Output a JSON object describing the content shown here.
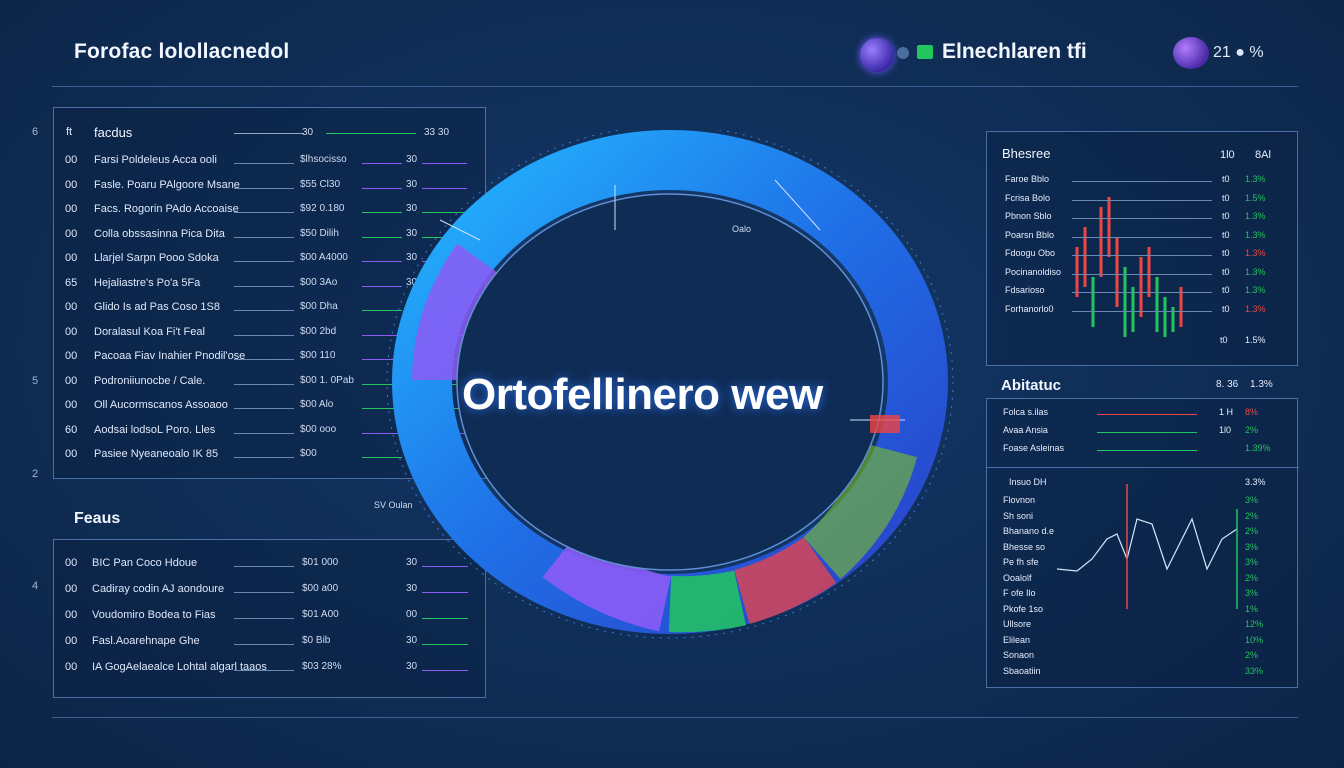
{
  "header": {
    "title": "Forofac lolollacnedol",
    "brand": "Elnechlaren tfi",
    "right_value": "21 ● %",
    "colors": {
      "accent": "#2f8cff",
      "green": "#22c55e",
      "purple": "#8b5cf6",
      "red": "#ef4444"
    }
  },
  "left_axis": [
    "6",
    "5",
    "2",
    "4"
  ],
  "holdings": {
    "header_idx": "ft",
    "header_label": "facdus",
    "header_val": "30",
    "header_extra": "33 30",
    "rows": [
      {
        "idx": "00",
        "label": "Farsi Poldeleus Acca ooli",
        "val": "$lhsocisso",
        "amt": "30",
        "color": "#8b5cf6"
      },
      {
        "idx": "00",
        "label": "Fasle. Poaru PAlgoore Msane",
        "val": "$55 Cl30",
        "amt": "30",
        "color": "#8b5cf6"
      },
      {
        "idx": "00",
        "label": "Facs. Rogorin PAdo Accoaise",
        "val": "$92 0.180",
        "amt": "30",
        "color": "#22c55e"
      },
      {
        "idx": "00",
        "label": "Colla obssasinna Pica Dita",
        "val": "$50 Dilih",
        "amt": "30",
        "color": "#22c55e"
      },
      {
        "idx": "00",
        "label": "Llarjel Sarpn Pooo Sdoka",
        "val": "$00 A4000",
        "amt": "30",
        "color": "#8b5cf6"
      },
      {
        "idx": "65",
        "label": "Hejaliastre's Po'a 5Fa",
        "val": "$00 3Ao",
        "amt": "30",
        "color": "#8b5cf6"
      },
      {
        "idx": "00",
        "label": "Glido Is ad Pas Coso 1S8",
        "val": "$00 Dha",
        "amt": "30",
        "color": "#22c55e"
      },
      {
        "idx": "00",
        "label": "Doralasul Koa Fi't Feal",
        "val": "$00 2bd",
        "amt": "30",
        "color": "#8b5cf6"
      },
      {
        "idx": "00",
        "label": "Pacoaa Fiav Inahier Pnodil'ose",
        "val": "$00 110",
        "amt": "30",
        "color": "#8b5cf6"
      },
      {
        "idx": "00",
        "label": "Podroniiunocbe / Cale.",
        "val": "$00 1. 0Pab",
        "amt": "30",
        "color": "#22c55e"
      },
      {
        "idx": "00",
        "label": "Oll Aucormscanos Assoaoo",
        "val": "$00 Alo",
        "amt": "30",
        "color": "#22c55e"
      },
      {
        "idx": "60",
        "label": "Aodsai lodsoL Poro. Lles",
        "val": "$00 ooo",
        "amt": "30",
        "color": "#8b5cf6"
      },
      {
        "idx": "00",
        "label": "Pasiee Nyeaneoalo IK 85",
        "val": "$00",
        "amt": "30",
        "color": "#22c55e"
      }
    ]
  },
  "features": {
    "title": "Feaus",
    "rows": [
      {
        "idx": "00",
        "label": "BIC Pan Coco Hdoue",
        "val": "$01 000",
        "amt": "30",
        "color": "#8b5cf6"
      },
      {
        "idx": "00",
        "label": "Cadiray codin AJ aondoure",
        "val": "$00 a00",
        "amt": "30",
        "color": "#8b5cf6"
      },
      {
        "idx": "00",
        "label": "Voudomiro Bodea to Fias",
        "val": "$01 A00",
        "amt": "00",
        "color": "#22c55e"
      },
      {
        "idx": "00",
        "label": "Fasl.Aoarehnape Ghe",
        "val": "$0 Bib",
        "amt": "30",
        "color": "#22c55e"
      },
      {
        "idx": "00",
        "label": "IA GogAelaealce Lohtal algarl taaos",
        "val": "$03 28%",
        "amt": "30",
        "color": "#8b5cf6"
      }
    ]
  },
  "center": {
    "title": "Ortofellinero wew",
    "top_label": "Oalo",
    "left_label": "SV Oulan"
  },
  "right_top": {
    "title": "Bhesree",
    "col_a": "1l0",
    "col_b": "8Al",
    "rows": [
      {
        "label": "Faroe Bblo",
        "a": "t0",
        "b": "1.3%",
        "color": "#22c55e"
      },
      {
        "label": "Fcrisa Bolo",
        "a": "t0",
        "b": "1.5%",
        "color": "#22c55e"
      },
      {
        "label": "Pbnon Sblo",
        "a": "t0",
        "b": "1.3%",
        "color": "#22c55e"
      },
      {
        "label": "Poarsn Bblo",
        "a": "t0",
        "b": "1.3%",
        "color": "#22c55e"
      },
      {
        "label": "Fdoogu Obo",
        "a": "t0",
        "b": "1.3%",
        "color": "#ef4444"
      },
      {
        "label": "Pocinanoldiso",
        "a": "t0",
        "b": "1.3%",
        "color": "#22c55e"
      },
      {
        "label": "Fdsarioso",
        "a": "t0",
        "b": "1.3%",
        "color": "#22c55e"
      },
      {
        "label": "Forhanorlo0",
        "a": "t0",
        "b": "1.3%",
        "color": "#ef4444"
      }
    ],
    "foot_a": "t0",
    "foot_b": "1.5%"
  },
  "right_mid": {
    "title": "Abitatuc",
    "v1": "8. 36",
    "v2": "1.3%",
    "rows": [
      {
        "label": "Folca s.ilas",
        "a": "1 H",
        "b": "8%",
        "color": "#ef4444"
      },
      {
        "label": "Avaa Ansia",
        "a": "1l0",
        "b": "2%",
        "color": "#22c55e"
      },
      {
        "label": "Foase Asleinas",
        "a": "",
        "b": "1.39%",
        "color": "#22c55e"
      }
    ]
  },
  "right_bottom": {
    "head": "Insuo DH",
    "head_val": "3.3%",
    "rows": [
      {
        "label": "Flovnon",
        "b": "3%",
        "color": "#22c55e"
      },
      {
        "label": "Sh soni",
        "b": "2%",
        "color": "#22c55e"
      },
      {
        "label": "Bhanano d.e",
        "b": "2%",
        "color": "#22c55e"
      },
      {
        "label": "Bhesse so",
        "b": "3%",
        "color": "#22c55e"
      },
      {
        "label": "Pe fh sfe",
        "b": "3%",
        "color": "#22c55e"
      },
      {
        "label": "Ooalolf",
        "b": "2%",
        "color": "#22c55e"
      },
      {
        "label": "F ofe Ilo",
        "b": "3%",
        "color": "#22c55e"
      },
      {
        "label": "Pkofe 1so",
        "b": "1%",
        "color": "#22c55e"
      },
      {
        "label": "Ullsore",
        "b": "12%",
        "color": "#22c55e"
      },
      {
        "label": "Elilean",
        "b": "10%",
        "color": "#22c55e"
      },
      {
        "label": "Sonaon",
        "b": "2%",
        "color": "#22c55e"
      },
      {
        "label": "Sbaoatiin",
        "b": "33%",
        "color": "#22c55e"
      }
    ]
  }
}
